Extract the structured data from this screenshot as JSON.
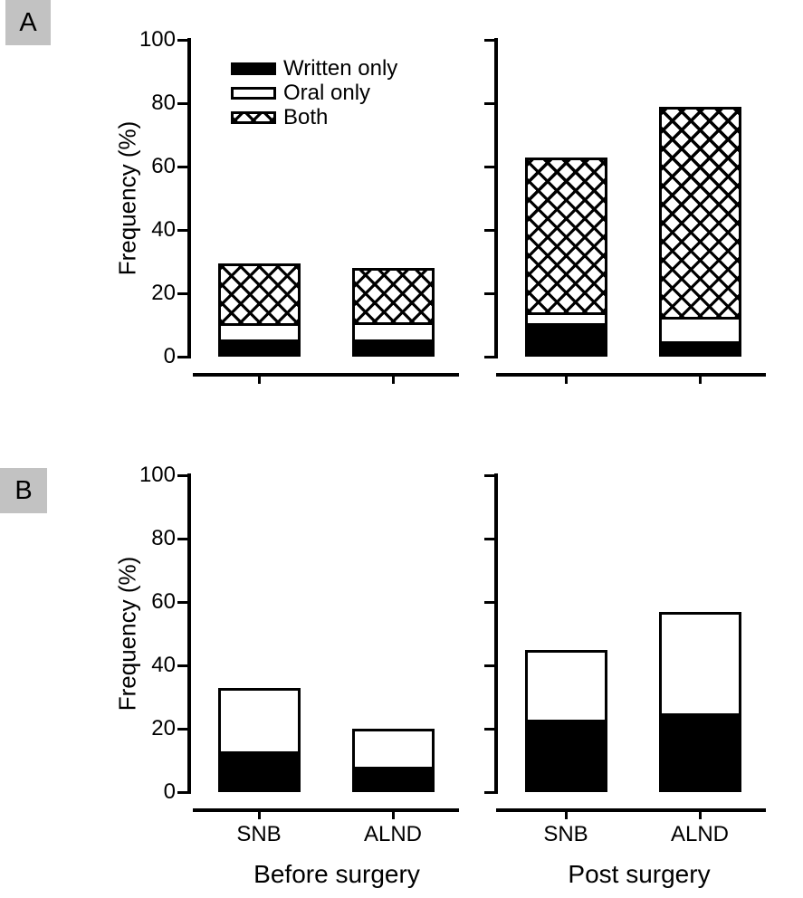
{
  "figure": {
    "background": "#ffffff",
    "ink_color": "#000000",
    "panel_label_bg": "#c2c2c2",
    "panel_labels": [
      {
        "text": "A"
      },
      {
        "text": "B"
      }
    ]
  },
  "chart_data": [
    {
      "panel": "A",
      "type": "bar",
      "stacked": true,
      "title": "",
      "ylabel": "Frequency (%)",
      "ylim": [
        0,
        100
      ],
      "yticks": [
        0,
        20,
        40,
        60,
        80,
        100
      ],
      "grid": false,
      "legend_position": "inside-upper-left",
      "legend": [
        {
          "label": "Written only",
          "pattern": "solid-black"
        },
        {
          "label": "Oral only",
          "pattern": "solid-white"
        },
        {
          "label": "Both",
          "pattern": "crosshatch"
        }
      ],
      "groups": [
        {
          "label": "Before surgery",
          "categories": [
            "SNB",
            "ALND"
          ]
        },
        {
          "label": "Post surgery",
          "categories": [
            "SNB",
            "ALND"
          ]
        }
      ],
      "bar_order": [
        "Before surgery/SNB",
        "Before surgery/ALND",
        "Post surgery/SNB",
        "Post surgery/ALND"
      ],
      "series": [
        {
          "name": "Written only",
          "pattern": "solid-black",
          "values": [
            5.5,
            5.5,
            10.5,
            5
          ]
        },
        {
          "name": "Oral only",
          "pattern": "solid-white",
          "values": [
            5,
            5.5,
            3.5,
            7.5
          ]
        },
        {
          "name": "Both",
          "pattern": "crosshatch",
          "values": [
            19,
            17,
            49,
            66.5
          ]
        }
      ],
      "stack_totals": [
        29.5,
        28,
        63,
        79
      ]
    },
    {
      "panel": "B",
      "type": "bar",
      "stacked": true,
      "title": "",
      "ylabel": "Frequency (%)",
      "ylim": [
        0,
        100
      ],
      "yticks": [
        0,
        20,
        40,
        60,
        80,
        100
      ],
      "grid": false,
      "legend_position": "none",
      "legend": [],
      "groups": [
        {
          "label": "Before surgery",
          "categories": [
            "SNB",
            "ALND"
          ]
        },
        {
          "label": "Post surgery",
          "categories": [
            "SNB",
            "ALND"
          ]
        }
      ],
      "bar_order": [
        "Before surgery/SNB",
        "Before surgery/ALND",
        "Post surgery/SNB",
        "Post surgery/ALND"
      ],
      "series": [
        {
          "name": "Written only",
          "pattern": "solid-black",
          "values": [
            13,
            8,
            23,
            25
          ]
        },
        {
          "name": "Oral only",
          "pattern": "solid-white",
          "values": [
            20,
            12,
            22,
            32
          ]
        }
      ],
      "stack_totals": [
        33,
        20,
        45,
        57
      ]
    }
  ]
}
